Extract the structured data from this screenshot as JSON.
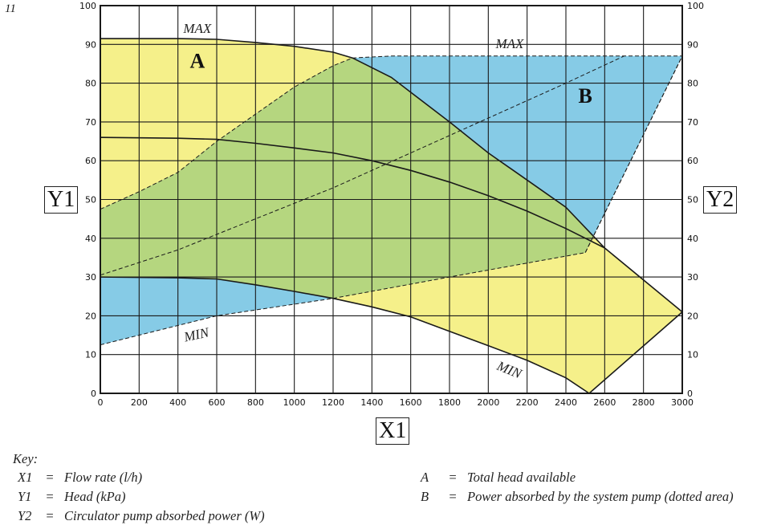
{
  "figure_number": "11",
  "chart_data": {
    "type": "area",
    "xlabel": "X1",
    "ylabel": "Y1",
    "y2label": "Y2",
    "xlim": [
      0,
      3000
    ],
    "ylim": [
      0,
      100
    ],
    "y2lim": [
      0,
      100
    ],
    "grid": true,
    "x_ticks": [
      0,
      200,
      400,
      600,
      800,
      1000,
      1200,
      1400,
      1600,
      1800,
      2000,
      2200,
      2400,
      2600,
      2800,
      3000
    ],
    "y_ticks": [
      0,
      10,
      20,
      30,
      40,
      50,
      60,
      70,
      80,
      90,
      100
    ],
    "colors": {
      "region_a": "#f5f08a",
      "region_b": "#86cbe6",
      "overlap": "#b5d67f",
      "lines": "#1a1a1a"
    },
    "series": [
      {
        "name": "MAX",
        "axis": "y1",
        "style": "solid",
        "x": [
          0,
          400,
          600,
          800,
          1000,
          1200,
          1300,
          1500,
          1800,
          2000,
          2200,
          2400,
          2600,
          3000
        ],
        "y": [
          91.5,
          91.5,
          91.3,
          90.5,
          89.5,
          88,
          86.5,
          81.5,
          70,
          62,
          55,
          48,
          37.5,
          21
        ]
      },
      {
        "axis": "y1",
        "style": "solid",
        "x": [
          0,
          400,
          600,
          800,
          1000,
          1200,
          1400,
          1600,
          1800,
          2000,
          2200,
          2400,
          2600
        ],
        "y": [
          66,
          65.8,
          65.5,
          64.5,
          63.3,
          62,
          60,
          57.5,
          54.5,
          51,
          47,
          42.5,
          37.5
        ]
      },
      {
        "name": "MIN",
        "axis": "y1",
        "style": "solid",
        "x": [
          0,
          400,
          600,
          800,
          1000,
          1200,
          1400,
          1600,
          1800,
          2000,
          2200,
          2400,
          2520,
          3000
        ],
        "y": [
          30,
          29.8,
          29.5,
          28,
          26.3,
          24.5,
          22.3,
          19.7,
          16,
          12.3,
          8.5,
          4,
          0,
          21
        ]
      },
      {
        "name": "MAX",
        "axis": "y2",
        "style": "dashed",
        "x": [
          0,
          200,
          400,
          600,
          800,
          1000,
          1200,
          1300,
          1500,
          3000
        ],
        "y": [
          47.5,
          52,
          57,
          65,
          72,
          79,
          84.5,
          86.5,
          87,
          87
        ]
      },
      {
        "axis": "y2",
        "style": "dashed",
        "x": [
          0,
          400,
          800,
          1200,
          1600,
          2000,
          2400,
          2700
        ],
        "y": [
          30.5,
          37,
          45,
          53,
          62,
          71,
          80,
          87
        ]
      },
      {
        "name": "MIN",
        "axis": "y2",
        "style": "dashed",
        "x": [
          0,
          600,
          1200,
          1800,
          2500,
          3000
        ],
        "y": [
          12.5,
          20,
          24.5,
          30,
          36.3,
          87
        ]
      }
    ],
    "regions": [
      {
        "name": "A",
        "label_at": [
          500,
          84
        ]
      },
      {
        "name": "B",
        "label_at": [
          2500,
          75
        ]
      }
    ],
    "annotations": [
      {
        "text": "MAX",
        "at": [
          500,
          93
        ]
      },
      {
        "text": "MAX",
        "at": [
          2110,
          89
        ]
      },
      {
        "text": "MIN",
        "at": [
          500,
          14
        ]
      },
      {
        "text": "MIN",
        "at": [
          2100,
          5
        ]
      }
    ]
  },
  "key": {
    "title": "Key:",
    "items": [
      {
        "k": "X1",
        "eq": "=",
        "v": "Flow rate (l/h)"
      },
      {
        "k": "Y1",
        "eq": "=",
        "v": "Head (kPa)"
      },
      {
        "k": "Y2",
        "eq": "=",
        "v": "Circulator pump absorbed power (W)"
      },
      {
        "k": "A",
        "eq": "=",
        "v": "Total head available"
      },
      {
        "k": "B",
        "eq": "=",
        "v": "Power absorbed by the system pump (dotted area)"
      }
    ]
  }
}
